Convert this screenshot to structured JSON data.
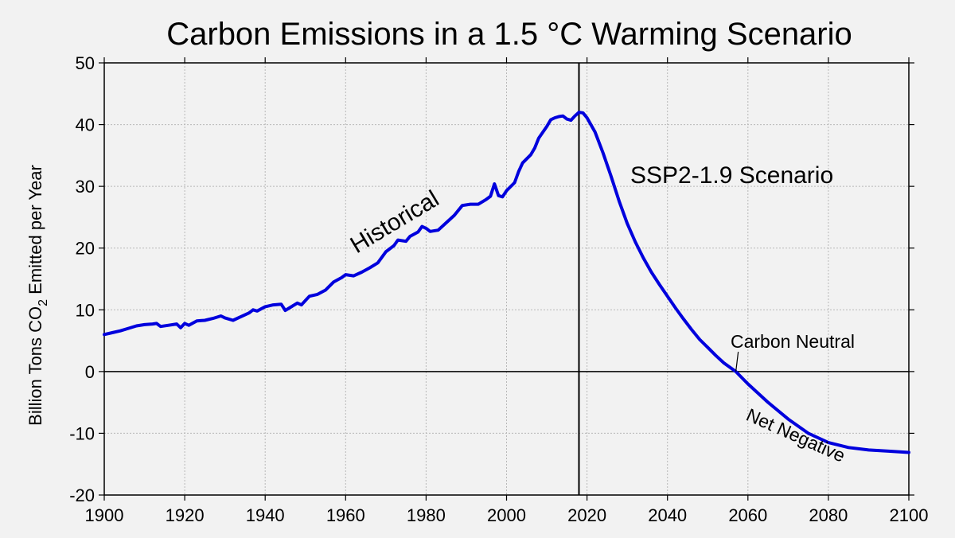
{
  "chart_data": {
    "type": "line",
    "title": "Carbon Emissions in a 1.5 °C Warming Scenario",
    "ylabel_parts": {
      "pre": "Billion Tons CO",
      "sub": "2",
      "post": " Emitted per Year"
    },
    "xlim": [
      1900,
      2100
    ],
    "ylim": [
      -20,
      50
    ],
    "xticks": [
      1900,
      1920,
      1940,
      1960,
      1980,
      2000,
      2020,
      2040,
      2060,
      2080,
      2100
    ],
    "yticks": [
      -20,
      -10,
      0,
      10,
      20,
      30,
      40,
      50
    ],
    "grid": true,
    "line_color": "#0000dd",
    "divider_x": 2018,
    "series": [
      {
        "values": [
          [
            1900,
            6.0
          ],
          [
            1902,
            6.3
          ],
          [
            1904,
            6.6
          ],
          [
            1906,
            7.0
          ],
          [
            1908,
            7.4
          ],
          [
            1910,
            7.6
          ],
          [
            1912,
            7.7
          ],
          [
            1913,
            7.8
          ],
          [
            1914,
            7.3
          ],
          [
            1916,
            7.5
          ],
          [
            1918,
            7.7
          ],
          [
            1919,
            7.1
          ],
          [
            1920,
            7.8
          ],
          [
            1921,
            7.5
          ],
          [
            1923,
            8.2
          ],
          [
            1925,
            8.3
          ],
          [
            1927,
            8.6
          ],
          [
            1929,
            9.0
          ],
          [
            1930,
            8.7
          ],
          [
            1932,
            8.3
          ],
          [
            1934,
            8.9
          ],
          [
            1936,
            9.5
          ],
          [
            1937,
            10.0
          ],
          [
            1938,
            9.8
          ],
          [
            1940,
            10.5
          ],
          [
            1942,
            10.8
          ],
          [
            1944,
            10.9
          ],
          [
            1945,
            9.9
          ],
          [
            1946,
            10.3
          ],
          [
            1948,
            11.1
          ],
          [
            1949,
            10.8
          ],
          [
            1951,
            12.2
          ],
          [
            1953,
            12.5
          ],
          [
            1955,
            13.2
          ],
          [
            1957,
            14.5
          ],
          [
            1959,
            15.2
          ],
          [
            1960,
            15.7
          ],
          [
            1962,
            15.5
          ],
          [
            1964,
            16.1
          ],
          [
            1966,
            16.8
          ],
          [
            1968,
            17.6
          ],
          [
            1970,
            19.4
          ],
          [
            1972,
            20.4
          ],
          [
            1973,
            21.3
          ],
          [
            1975,
            21.1
          ],
          [
            1976,
            21.9
          ],
          [
            1978,
            22.6
          ],
          [
            1979,
            23.5
          ],
          [
            1980,
            23.2
          ],
          [
            1981,
            22.7
          ],
          [
            1983,
            22.9
          ],
          [
            1985,
            24.1
          ],
          [
            1987,
            25.3
          ],
          [
            1989,
            26.9
          ],
          [
            1991,
            27.1
          ],
          [
            1993,
            27.1
          ],
          [
            1995,
            27.9
          ],
          [
            1996,
            28.4
          ],
          [
            1997,
            30.4
          ],
          [
            1998,
            28.5
          ],
          [
            1999,
            28.3
          ],
          [
            2000,
            29.3
          ],
          [
            2002,
            30.6
          ],
          [
            2003,
            32.4
          ],
          [
            2004,
            33.8
          ],
          [
            2006,
            35.1
          ],
          [
            2007,
            36.2
          ],
          [
            2008,
            37.8
          ],
          [
            2010,
            39.7
          ],
          [
            2011,
            40.8
          ],
          [
            2012,
            41.1
          ],
          [
            2013,
            41.3
          ],
          [
            2014,
            41.4
          ],
          [
            2015,
            40.9
          ],
          [
            2016,
            40.7
          ],
          [
            2017,
            41.4
          ],
          [
            2018,
            42.0
          ]
        ]
      },
      {
        "values": [
          [
            2018,
            42.0
          ],
          [
            2019,
            41.9
          ],
          [
            2020,
            41.1
          ],
          [
            2022,
            38.8
          ],
          [
            2024,
            35.4
          ],
          [
            2026,
            31.6
          ],
          [
            2028,
            27.6
          ],
          [
            2030,
            24.0
          ],
          [
            2032,
            21.0
          ],
          [
            2034,
            18.4
          ],
          [
            2036,
            16.1
          ],
          [
            2038,
            14.1
          ],
          [
            2040,
            12.2
          ],
          [
            2042,
            10.3
          ],
          [
            2044,
            8.5
          ],
          [
            2046,
            6.8
          ],
          [
            2048,
            5.2
          ],
          [
            2050,
            3.9
          ],
          [
            2052,
            2.6
          ],
          [
            2054,
            1.4
          ],
          [
            2057,
            0.0
          ],
          [
            2060,
            -2.0
          ],
          [
            2065,
            -5.0
          ],
          [
            2070,
            -7.7
          ],
          [
            2075,
            -10.0
          ],
          [
            2080,
            -11.5
          ],
          [
            2085,
            -12.3
          ],
          [
            2090,
            -12.7
          ],
          [
            2095,
            -12.9
          ],
          [
            2100,
            -13.1
          ]
        ]
      }
    ],
    "annotations": {
      "historical": "Historical",
      "scenario": "SSP2-1.9 Scenario",
      "carbon_neutral": "Carbon Neutral",
      "net_negative": "Net Negative"
    },
    "carbon_neutral_point": [
      2057,
      0
    ]
  }
}
